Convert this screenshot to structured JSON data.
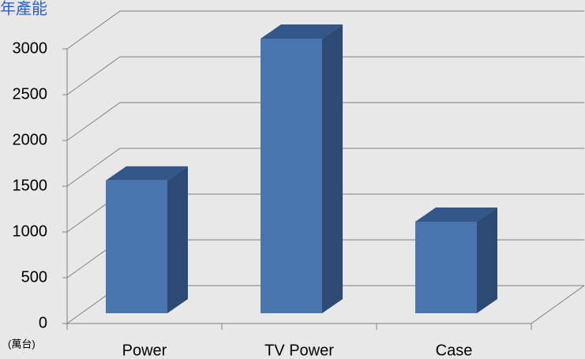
{
  "chart_data": {
    "type": "bar",
    "title": "年產能",
    "y_unit": "(萬台)",
    "categories": [
      "Power",
      "TV Power",
      "Case"
    ],
    "values": [
      1450,
      3000,
      1000
    ],
    "color": "#4a76b0",
    "ylim": [
      0,
      3000
    ],
    "yticks": [
      0,
      500,
      1000,
      1500,
      2000,
      2500,
      3000
    ],
    "grid": true
  }
}
